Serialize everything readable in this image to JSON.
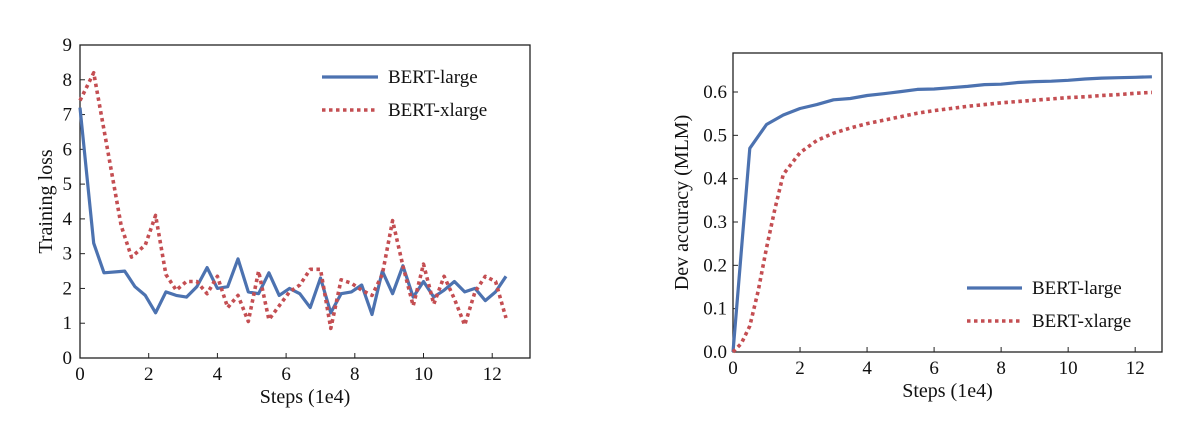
{
  "colors": {
    "bert_large": "#4c72b0",
    "bert_xlarge": "#c44e52",
    "axis": "#222222"
  },
  "chart_data": [
    {
      "type": "line",
      "title": "",
      "xlabel": "Steps (1e4)",
      "ylabel": "Training loss",
      "xlim": [
        0,
        13.1
      ],
      "ylim": [
        0,
        9
      ],
      "xticks": [
        0,
        2,
        4,
        6,
        8,
        10,
        12
      ],
      "yticks": [
        0,
        1,
        2,
        3,
        4,
        5,
        6,
        7,
        8,
        9
      ],
      "grid": false,
      "legend": "top-right",
      "series": [
        {
          "name": "BERT-large",
          "style": "solid",
          "x": [
            0,
            0.4,
            0.7,
            1.3,
            1.6,
            1.9,
            2.2,
            2.5,
            2.8,
            3.1,
            3.4,
            3.7,
            4.0,
            4.3,
            4.6,
            4.9,
            5.2,
            5.5,
            5.8,
            6.1,
            6.4,
            6.7,
            7.0,
            7.3,
            7.6,
            7.9,
            8.2,
            8.5,
            8.8,
            9.1,
            9.4,
            9.7,
            10.0,
            10.3,
            10.6,
            10.9,
            11.2,
            11.5,
            11.8,
            12.1,
            12.4
          ],
          "values": [
            7.2,
            3.3,
            2.45,
            2.5,
            2.05,
            1.8,
            1.3,
            1.9,
            1.8,
            1.75,
            2.05,
            2.6,
            2.0,
            2.05,
            2.85,
            1.9,
            1.85,
            2.45,
            1.8,
            2.0,
            1.85,
            1.45,
            2.3,
            1.3,
            1.85,
            1.9,
            2.1,
            1.25,
            2.5,
            1.85,
            2.65,
            1.75,
            2.2,
            1.75,
            1.95,
            2.2,
            1.9,
            2.0,
            1.65,
            1.9,
            2.35
          ]
        },
        {
          "name": "BERT-xlarge",
          "style": "dotted",
          "x": [
            0,
            0.4,
            0.8,
            1.2,
            1.5,
            1.9,
            2.2,
            2.5,
            2.8,
            3.1,
            3.4,
            3.7,
            4.0,
            4.3,
            4.6,
            4.9,
            5.2,
            5.5,
            5.8,
            6.1,
            6.4,
            6.7,
            7.0,
            7.3,
            7.6,
            7.9,
            8.2,
            8.5,
            8.8,
            9.1,
            9.4,
            9.7,
            10.0,
            10.3,
            10.6,
            10.9,
            11.2,
            11.5,
            11.8,
            12.1,
            12.4
          ],
          "values": [
            7.4,
            8.2,
            6.0,
            3.8,
            2.9,
            3.25,
            4.1,
            2.4,
            1.95,
            2.2,
            2.2,
            1.85,
            2.35,
            1.45,
            1.8,
            1.05,
            2.5,
            1.1,
            1.5,
            1.9,
            2.1,
            2.55,
            2.55,
            0.85,
            2.25,
            2.15,
            1.95,
            1.8,
            2.4,
            3.95,
            2.65,
            1.5,
            2.7,
            1.55,
            2.35,
            1.7,
            0.95,
            1.9,
            2.35,
            2.2,
            1.15
          ]
        }
      ]
    },
    {
      "type": "line",
      "title": "",
      "xlabel": "Steps (1e4)",
      "ylabel": "Dev accuracy (MLM)",
      "xlim": [
        0,
        12.8
      ],
      "ylim": [
        0,
        0.69
      ],
      "xticks": [
        0,
        2,
        4,
        6,
        8,
        10,
        12
      ],
      "yticks": [
        0.0,
        0.1,
        0.2,
        0.3,
        0.4,
        0.5,
        0.6
      ],
      "ytick_labels": [
        "0.0",
        "0.1",
        "0.2",
        "0.3",
        "0.4",
        "0.5",
        "0.6"
      ],
      "grid": false,
      "legend": "bottom-right",
      "series": [
        {
          "name": "BERT-large",
          "style": "solid",
          "x": [
            0,
            0.5,
            1.0,
            1.5,
            2.0,
            2.5,
            3.0,
            3.5,
            4.0,
            4.5,
            5.0,
            5.5,
            6.0,
            6.5,
            7.0,
            7.5,
            8.0,
            8.5,
            9.0,
            9.5,
            10.0,
            10.5,
            11.0,
            11.5,
            12.0,
            12.5
          ],
          "values": [
            0.0,
            0.47,
            0.525,
            0.547,
            0.562,
            0.571,
            0.582,
            0.585,
            0.592,
            0.596,
            0.601,
            0.606,
            0.607,
            0.61,
            0.613,
            0.617,
            0.618,
            0.622,
            0.624,
            0.625,
            0.627,
            0.63,
            0.632,
            0.633,
            0.634,
            0.635
          ]
        },
        {
          "name": "BERT-xlarge",
          "style": "dotted",
          "x": [
            0,
            0.25,
            0.5,
            0.75,
            1.0,
            1.25,
            1.5,
            2.0,
            2.5,
            3.0,
            3.5,
            4.0,
            4.5,
            5.0,
            5.5,
            6.0,
            6.5,
            7.0,
            7.5,
            8.0,
            8.5,
            9.0,
            9.5,
            10.0,
            10.5,
            11.0,
            11.5,
            12.0,
            12.5
          ],
          "values": [
            0.0,
            0.02,
            0.06,
            0.14,
            0.24,
            0.33,
            0.41,
            0.46,
            0.488,
            0.505,
            0.517,
            0.527,
            0.535,
            0.543,
            0.551,
            0.557,
            0.562,
            0.567,
            0.571,
            0.575,
            0.578,
            0.581,
            0.584,
            0.587,
            0.589,
            0.592,
            0.594,
            0.597,
            0.599
          ]
        }
      ]
    }
  ]
}
